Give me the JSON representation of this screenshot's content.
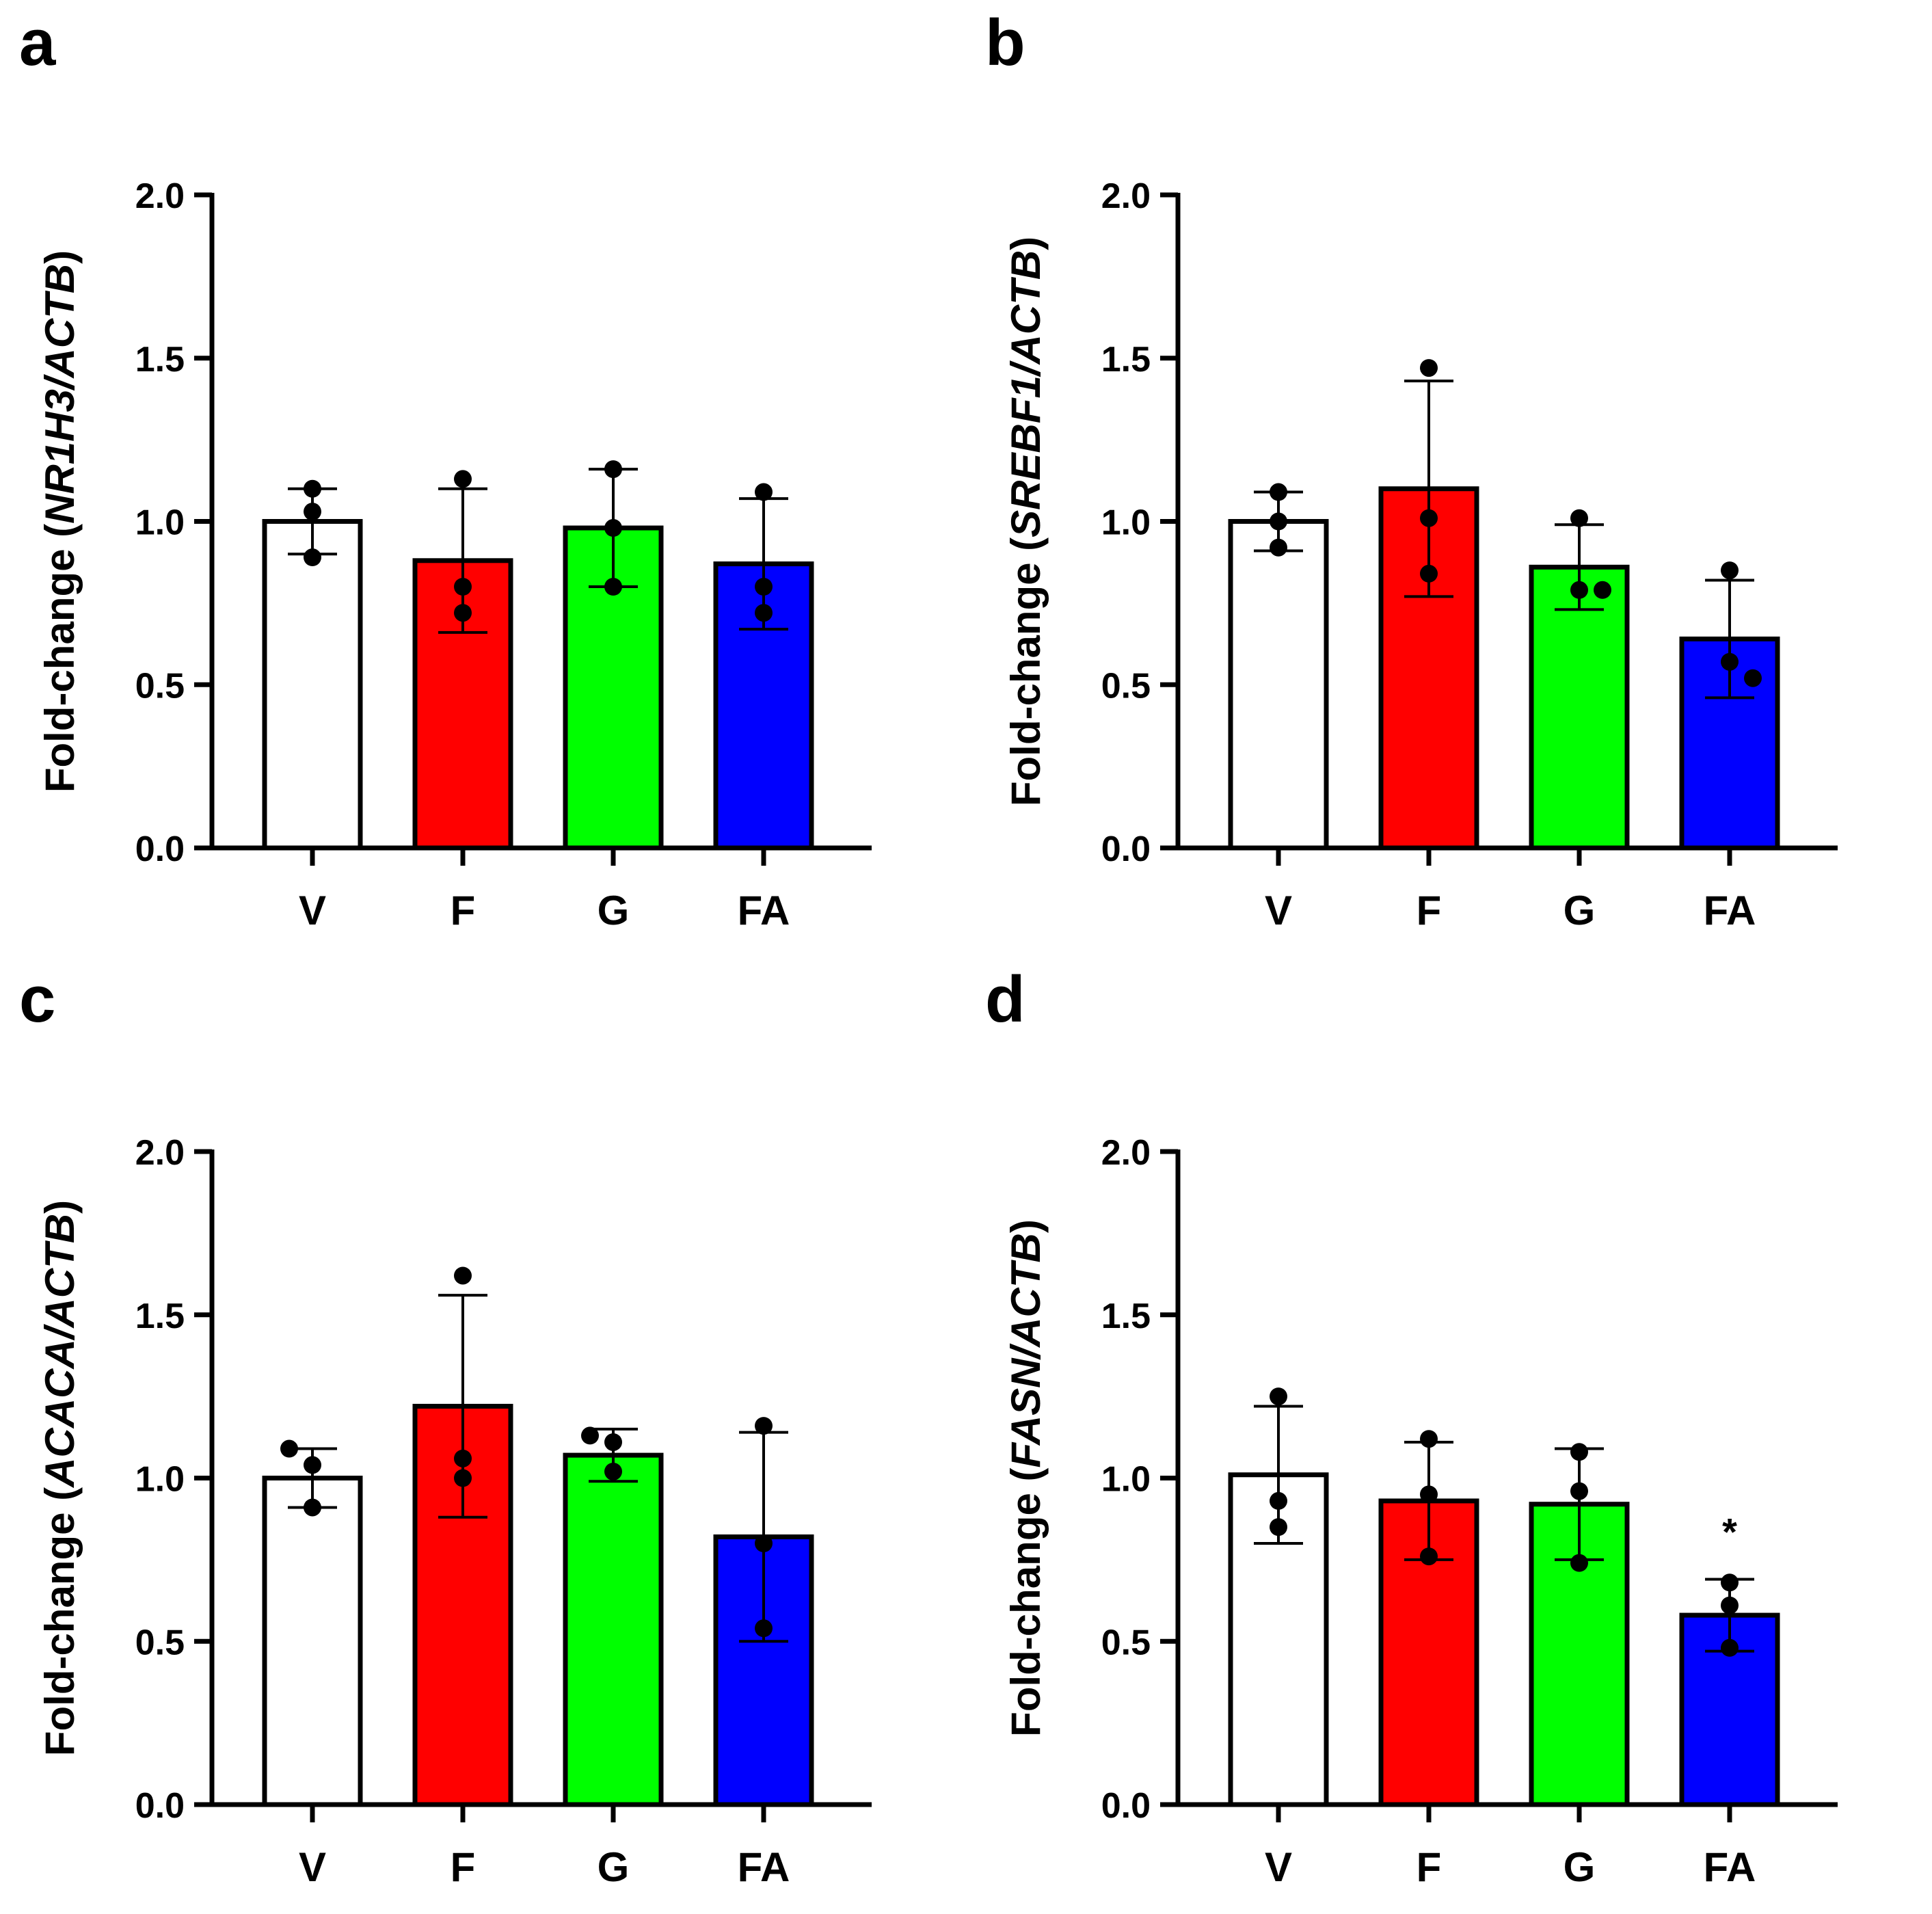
{
  "colors": {
    "V": "#ffffff",
    "F": "#ff0000",
    "G": "#00ff00",
    "FA": "#0000ff",
    "stroke": "#000000"
  },
  "chart_data": [
    {
      "panel": "a",
      "type": "bar",
      "ylabel_prefix": "Fold-change (",
      "ylabel_gene": "NR1H3/ACTB",
      "ylabel_suffix": ")",
      "ylim": [
        0,
        2.0
      ],
      "yticks": [
        "0.0",
        "0.5",
        "1.0",
        "1.5",
        "2.0"
      ],
      "categories": [
        "V",
        "F",
        "G",
        "FA"
      ],
      "values": [
        1.0,
        0.88,
        0.98,
        0.87
      ],
      "sd": [
        0.1,
        0.22,
        0.18,
        0.2
      ],
      "points": [
        [
          1.1,
          1.03,
          0.89
        ],
        [
          1.13,
          0.8,
          0.72
        ],
        [
          1.16,
          0.98,
          0.8
        ],
        [
          1.09,
          0.8,
          0.72
        ]
      ],
      "significance": [
        "",
        "",
        "",
        ""
      ]
    },
    {
      "panel": "b",
      "type": "bar",
      "ylabel_prefix": "Fold-change (",
      "ylabel_gene": "SREBF1/ACTB",
      "ylabel_suffix": ")",
      "ylim": [
        0,
        2.0
      ],
      "yticks": [
        "0.0",
        "0.5",
        "1.0",
        "1.5",
        "2.0"
      ],
      "categories": [
        "V",
        "F",
        "G",
        "FA"
      ],
      "values": [
        1.0,
        1.1,
        0.86,
        0.64
      ],
      "sd": [
        0.09,
        0.33,
        0.13,
        0.18
      ],
      "points": [
        [
          1.09,
          1.0,
          0.92
        ],
        [
          1.47,
          1.01,
          0.84
        ],
        [
          1.01,
          0.79,
          0.79
        ],
        [
          0.85,
          0.57,
          0.52
        ]
      ],
      "significance": [
        "",
        "",
        "",
        ""
      ]
    },
    {
      "panel": "c",
      "type": "bar",
      "ylabel_prefix": "Fold-change (",
      "ylabel_gene": "ACACA/ACTB",
      "ylabel_suffix": ")",
      "ylim": [
        0,
        2.0
      ],
      "yticks": [
        "0.0",
        "0.5",
        "1.0",
        "1.5",
        "2.0"
      ],
      "categories": [
        "V",
        "F",
        "G",
        "FA"
      ],
      "values": [
        1.0,
        1.22,
        1.07,
        0.82
      ],
      "sd": [
        0.09,
        0.34,
        0.08,
        0.32
      ],
      "points": [
        [
          1.09,
          1.04,
          0.91
        ],
        [
          1.62,
          1.06,
          1.0
        ],
        [
          1.13,
          1.11,
          1.02
        ],
        [
          1.16,
          0.8,
          0.54
        ]
      ],
      "significance": [
        "",
        "",
        "",
        ""
      ]
    },
    {
      "panel": "d",
      "type": "bar",
      "ylabel_prefix": "Fold-change (",
      "ylabel_gene": "FASN/ACTB",
      "ylabel_suffix": ")",
      "ylim": [
        0,
        2.0
      ],
      "yticks": [
        "0.0",
        "0.5",
        "1.0",
        "1.5",
        "2.0"
      ],
      "categories": [
        "V",
        "F",
        "G",
        "FA"
      ],
      "values": [
        1.01,
        0.93,
        0.92,
        0.58
      ],
      "sd": [
        0.21,
        0.18,
        0.17,
        0.11
      ],
      "points": [
        [
          1.25,
          0.93,
          0.85
        ],
        [
          1.12,
          0.95,
          0.76
        ],
        [
          1.08,
          0.96,
          0.74
        ],
        [
          0.68,
          0.61,
          0.48
        ]
      ],
      "significance": [
        "",
        "",
        "",
        "*"
      ]
    }
  ]
}
